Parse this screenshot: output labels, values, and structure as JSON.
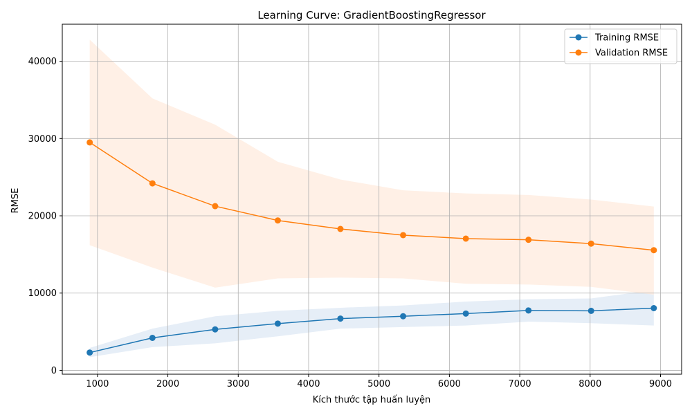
{
  "chart_data": {
    "type": "line",
    "title": "Learning Curve: GradientBoostingRegressor",
    "xlabel": "Kích thước tập huấn luyện",
    "ylabel": "RMSE",
    "xlim": [
      500,
      9300
    ],
    "ylim": [
      -500,
      44800
    ],
    "xticks": [
      1000,
      2000,
      3000,
      4000,
      5000,
      6000,
      7000,
      8000,
      9000
    ],
    "yticks": [
      0,
      10000,
      20000,
      30000,
      40000
    ],
    "grid": true,
    "legend_position": "top-right",
    "x": [
      890,
      1781,
      2672,
      3562,
      4452,
      5343,
      6234,
      7124,
      8014,
      8905
    ],
    "series": [
      {
        "name": "Training RMSE",
        "color": "#1f77b4",
        "band_color": "#e6eef7",
        "values": [
          2300,
          4200,
          5300,
          6050,
          6700,
          7000,
          7350,
          7750,
          7700,
          8050
        ],
        "band_upper": [
          2900,
          5400,
          7000,
          7700,
          8100,
          8400,
          8900,
          9200,
          9300,
          10400
        ],
        "band_lower": [
          1700,
          3000,
          3500,
          4400,
          5400,
          5600,
          5800,
          6300,
          6100,
          5800
        ]
      },
      {
        "name": "Validation RMSE",
        "color": "#ff7f0e",
        "band_color": "#fff0e6",
        "values": [
          29500,
          24200,
          21250,
          19400,
          18300,
          17500,
          17050,
          16900,
          16400,
          15550
        ],
        "band_upper": [
          42800,
          35200,
          31800,
          27000,
          24700,
          23300,
          22900,
          22700,
          22100,
          21200
        ],
        "band_lower": [
          16200,
          13300,
          10700,
          11900,
          12000,
          11900,
          11200,
          11100,
          10800,
          9800
        ]
      }
    ]
  }
}
